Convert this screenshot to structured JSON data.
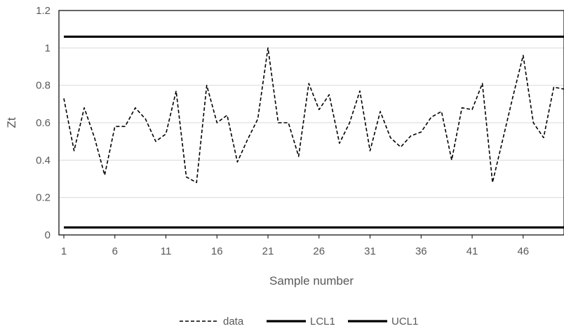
{
  "chart_data": {
    "type": "line",
    "xlabel": "Sample number",
    "ylabel": "Zt",
    "ylim": [
      0,
      1.2
    ],
    "yticks": [
      "0",
      "0.2",
      "0.4",
      "0.6",
      "0.8",
      "1",
      "1.2"
    ],
    "xticks": [
      "1",
      "6",
      "11",
      "16",
      "21",
      "26",
      "31",
      "36",
      "41",
      "46"
    ],
    "xlim": [
      1,
      50
    ],
    "grid": true,
    "legend_position": "bottom",
    "x": [
      1,
      2,
      3,
      4,
      5,
      6,
      7,
      8,
      9,
      10,
      11,
      12,
      13,
      14,
      15,
      16,
      17,
      18,
      19,
      20,
      21,
      22,
      23,
      24,
      25,
      26,
      27,
      28,
      29,
      30,
      31,
      32,
      33,
      34,
      35,
      36,
      37,
      38,
      39,
      40,
      41,
      42,
      43,
      44,
      45,
      46,
      47,
      48,
      49,
      50
    ],
    "series": [
      {
        "name": "data",
        "style": "dashed",
        "color": "#000000",
        "values": [
          0.73,
          0.45,
          0.68,
          0.52,
          0.32,
          0.58,
          0.58,
          0.68,
          0.62,
          0.5,
          0.54,
          0.77,
          0.31,
          0.28,
          0.8,
          0.6,
          0.64,
          0.39,
          0.51,
          0.62,
          1.0,
          0.6,
          0.6,
          0.42,
          0.81,
          0.67,
          0.75,
          0.49,
          0.6,
          0.77,
          0.45,
          0.66,
          0.52,
          0.47,
          0.53,
          0.55,
          0.63,
          0.66,
          0.4,
          0.68,
          0.67,
          0.81,
          0.28,
          0.51,
          0.74,
          0.96,
          0.6,
          0.52,
          0.79,
          0.78
        ]
      },
      {
        "name": "LCL1",
        "style": "solid",
        "color": "#000000",
        "values": [
          0.04,
          0.04,
          0.04,
          0.04,
          0.04,
          0.04,
          0.04,
          0.04,
          0.04,
          0.04,
          0.04,
          0.04,
          0.04,
          0.04,
          0.04,
          0.04,
          0.04,
          0.04,
          0.04,
          0.04,
          0.04,
          0.04,
          0.04,
          0.04,
          0.04,
          0.04,
          0.04,
          0.04,
          0.04,
          0.04,
          0.04,
          0.04,
          0.04,
          0.04,
          0.04,
          0.04,
          0.04,
          0.04,
          0.04,
          0.04,
          0.04,
          0.04,
          0.04,
          0.04,
          0.04,
          0.04,
          0.04,
          0.04,
          0.04,
          0.04
        ]
      },
      {
        "name": "UCL1",
        "style": "solid",
        "color": "#000000",
        "values": [
          1.06,
          1.06,
          1.06,
          1.06,
          1.06,
          1.06,
          1.06,
          1.06,
          1.06,
          1.06,
          1.06,
          1.06,
          1.06,
          1.06,
          1.06,
          1.06,
          1.06,
          1.06,
          1.06,
          1.06,
          1.06,
          1.06,
          1.06,
          1.06,
          1.06,
          1.06,
          1.06,
          1.06,
          1.06,
          1.06,
          1.06,
          1.06,
          1.06,
          1.06,
          1.06,
          1.06,
          1.06,
          1.06,
          1.06,
          1.06,
          1.06,
          1.06,
          1.06,
          1.06,
          1.06,
          1.06,
          1.06,
          1.06,
          1.06,
          1.06
        ]
      }
    ],
    "colors": {
      "grid": "#d9d9d9",
      "axis": "#000000",
      "text": "#595959"
    }
  }
}
